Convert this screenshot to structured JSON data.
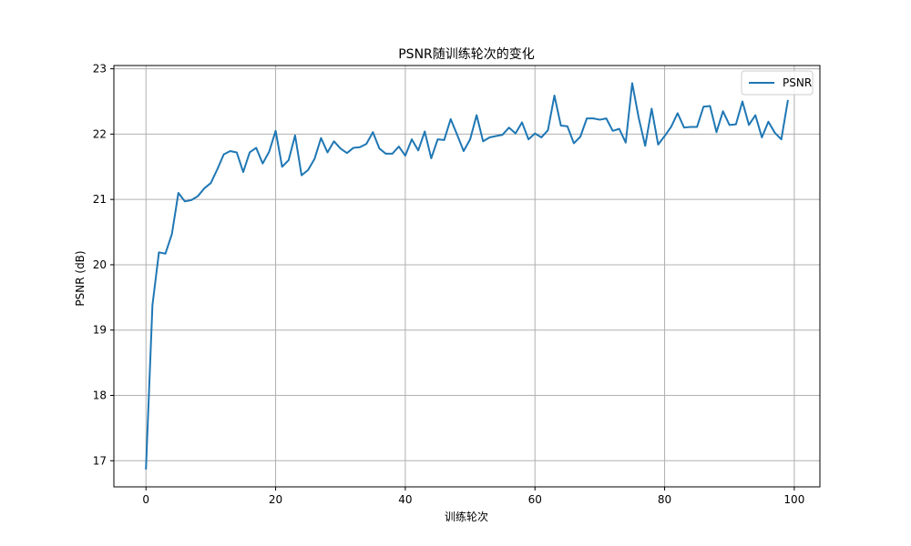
{
  "chart_data": {
    "type": "line",
    "title": "PSNR随训练轮次的变化",
    "xlabel": "训练轮次",
    "ylabel": "PSNR (dB)",
    "xlim": [
      -4.95,
      103.95
    ],
    "ylim": [
      16.6,
      23.05
    ],
    "xticks": [
      0,
      20,
      40,
      60,
      80,
      100
    ],
    "yticks": [
      17,
      18,
      19,
      20,
      21,
      22,
      23
    ],
    "grid": true,
    "legend_position": "top-right",
    "series": [
      {
        "name": "PSNR",
        "color": "#1f77b4",
        "x": [
          0,
          1,
          2,
          3,
          4,
          5,
          6,
          7,
          8,
          9,
          10,
          11,
          12,
          13,
          14,
          15,
          16,
          17,
          18,
          19,
          20,
          21,
          22,
          23,
          24,
          25,
          26,
          27,
          28,
          29,
          30,
          31,
          32,
          33,
          34,
          35,
          36,
          37,
          38,
          39,
          40,
          41,
          42,
          43,
          44,
          45,
          46,
          47,
          48,
          49,
          50,
          51,
          52,
          53,
          54,
          55,
          56,
          57,
          58,
          59,
          60,
          61,
          62,
          63,
          64,
          65,
          66,
          67,
          68,
          69,
          70,
          71,
          72,
          73,
          74,
          75,
          76,
          77,
          78,
          79,
          80,
          81,
          82,
          83,
          84,
          85,
          86,
          87,
          88,
          89,
          90,
          91,
          92,
          93,
          94,
          95,
          96,
          97,
          98,
          99
        ],
        "values": [
          16.88,
          19.38,
          20.19,
          20.17,
          20.47,
          21.1,
          20.97,
          20.99,
          21.05,
          21.17,
          21.25,
          21.46,
          21.69,
          21.74,
          21.72,
          21.42,
          21.72,
          21.79,
          21.55,
          21.73,
          22.05,
          21.5,
          21.6,
          21.98,
          21.37,
          21.45,
          21.62,
          21.94,
          21.72,
          21.89,
          21.78,
          21.71,
          21.79,
          21.8,
          21.85,
          22.03,
          21.78,
          21.7,
          21.7,
          21.81,
          21.67,
          21.92,
          21.75,
          22.04,
          21.63,
          21.92,
          21.91,
          22.23,
          21.99,
          21.74,
          21.92,
          22.29,
          21.89,
          21.95,
          21.97,
          21.99,
          22.1,
          22.01,
          22.18,
          21.92,
          22.01,
          21.95,
          22.06,
          22.59,
          22.13,
          22.12,
          21.86,
          21.96,
          22.24,
          22.24,
          22.22,
          22.24,
          22.05,
          22.08,
          21.87,
          22.78,
          22.25,
          21.82,
          22.39,
          21.84,
          21.97,
          22.11,
          22.32,
          22.1,
          22.11,
          22.11,
          22.42,
          22.43,
          22.03,
          22.35,
          22.14,
          22.15,
          22.5,
          22.14,
          22.29,
          21.95,
          22.19,
          22.02,
          21.92,
          22.51
        ]
      }
    ]
  }
}
